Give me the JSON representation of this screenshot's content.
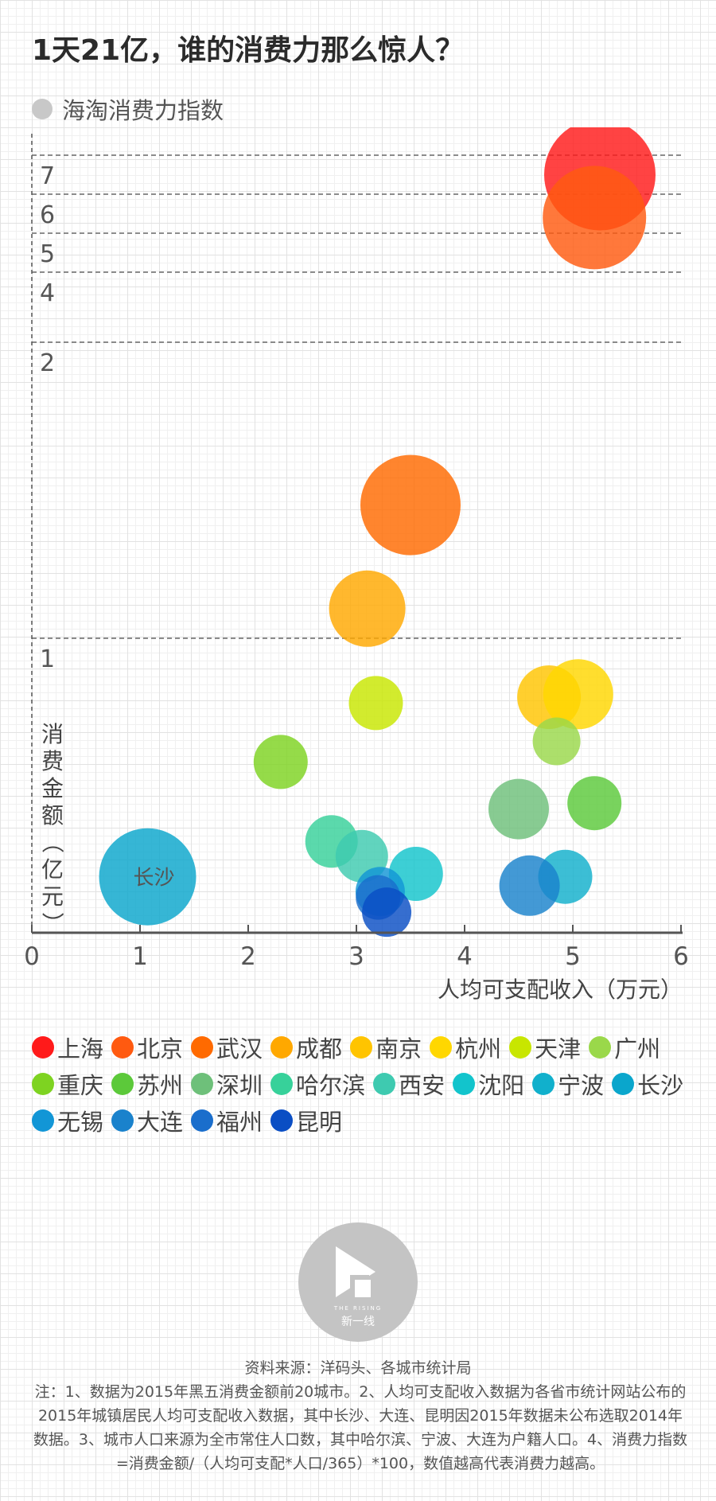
{
  "title": "1天21亿，谁的消费力那么惊人？",
  "series_legend_label": "海淘消费力指数",
  "chart_data": {
    "type": "scatter",
    "title": "1天21亿，谁的消费力那么惊人？",
    "xlabel": "人均可支配收入（万元）",
    "ylabel": "消费金额（亿元）",
    "xlim": [
      0,
      6
    ],
    "x_ticks": [
      "0",
      "1",
      "2",
      "3",
      "4",
      "5",
      "6"
    ],
    "y_ticks": [
      "1",
      "2",
      "4",
      "5",
      "6",
      "7"
    ],
    "y_axis_note": "broken scale: 0-1 linear, 1-2 compressed, 2-4 compressed, 4-7 compressed",
    "grid": "dashed horizontal lines at 1, 2, 4, 5, 6, 7",
    "point_label": "长沙",
    "series": [
      {
        "name": "上海",
        "color": "#ff1a1a",
        "x": 5.25,
        "y": 6.5,
        "r": 70
      },
      {
        "name": "北京",
        "color": "#ff5a10",
        "x": 5.2,
        "y": 5.4,
        "r": 65
      },
      {
        "name": "武汉",
        "color": "#ff6a00",
        "x": 3.5,
        "y": 1.45,
        "r": 63
      },
      {
        "name": "成都",
        "color": "#ffa800",
        "x": 3.1,
        "y": 1.1,
        "r": 48
      },
      {
        "name": "南京",
        "color": "#ffc400",
        "x": 4.78,
        "y": 0.8,
        "r": 40
      },
      {
        "name": "杭州",
        "color": "#ffd700",
        "x": 5.05,
        "y": 0.81,
        "r": 44
      },
      {
        "name": "天津",
        "color": "#c8e600",
        "x": 3.18,
        "y": 0.78,
        "r": 34
      },
      {
        "name": "广州",
        "color": "#9ad84a",
        "x": 4.85,
        "y": 0.65,
        "r": 30
      },
      {
        "name": "重庆",
        "color": "#7ed321",
        "x": 2.3,
        "y": 0.58,
        "r": 34
      },
      {
        "name": "苏州",
        "color": "#5cc93a",
        "x": 5.2,
        "y": 0.44,
        "r": 34
      },
      {
        "name": "深圳",
        "color": "#6ec07a",
        "x": 4.5,
        "y": 0.42,
        "r": 38
      },
      {
        "name": "哈尔滨",
        "color": "#37d19a",
        "x": 2.77,
        "y": 0.31,
        "r": 33
      },
      {
        "name": "西安",
        "color": "#3ecab0",
        "x": 3.05,
        "y": 0.26,
        "r": 33
      },
      {
        "name": "沈阳",
        "color": "#12c4cc",
        "x": 3.55,
        "y": 0.2,
        "r": 34
      },
      {
        "name": "宁波",
        "color": "#11b0cc",
        "x": 4.93,
        "y": 0.19,
        "r": 34
      },
      {
        "name": "长沙",
        "color": "#0aa6cc",
        "x": 1.07,
        "y": 0.19,
        "r": 61
      },
      {
        "name": "无锡",
        "color": "#1296d6",
        "x": 3.22,
        "y": 0.14,
        "r": 31
      },
      {
        "name": "大连",
        "color": "#1a82cc",
        "x": 4.6,
        "y": 0.16,
        "r": 38
      },
      {
        "name": "福州",
        "color": "#1a6ecc",
        "x": 3.2,
        "y": 0.12,
        "r": 28
      },
      {
        "name": "昆明",
        "color": "#0a4ec4",
        "x": 3.28,
        "y": 0.07,
        "r": 31
      }
    ]
  },
  "footer": {
    "logo_text_en": "THE RISING",
    "logo_text_cn": "新一线",
    "source": "资料来源：洋码头、各城市统计局",
    "note": "注：1、数据为2015年黑五消费金额前20城市。2、人均可支配收入数据为各省市统计网站公布的2015年城镇居民人均可支配收入数据，其中长沙、大连、昆明因2015年数据未公布选取2014年数据。3、城市人口来源为全市常住人口数，其中哈尔滨、宁波、大连为户籍人口。4、消费力指数=消费金额/（人均可支配*人口/365）*100，数值越高代表消费力越高。"
  }
}
